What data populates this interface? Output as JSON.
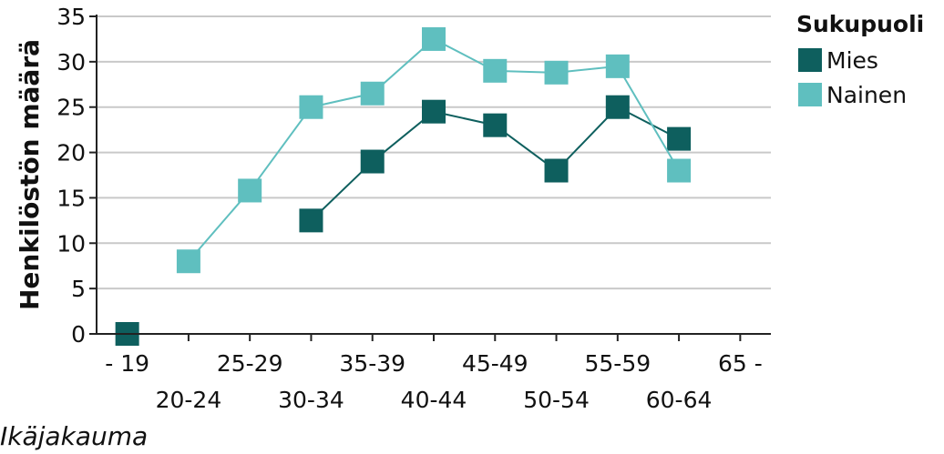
{
  "chart_data": {
    "type": "line",
    "categories": [
      "- 19",
      "20-24",
      "25-29",
      "30-34",
      "35-39",
      "40-44",
      "45-49",
      "50-54",
      "55-59",
      "60-64",
      "65 -"
    ],
    "series": [
      {
        "name": "Mies",
        "color": "#0e5f5e",
        "values": [
          0,
          null,
          null,
          12.5,
          19,
          24.5,
          23,
          18,
          25,
          21.5,
          null
        ]
      },
      {
        "name": "Nainen",
        "color": "#5fbfbf",
        "values": [
          null,
          8,
          15.8,
          25,
          26.5,
          32.5,
          29,
          28.8,
          29.5,
          18,
          null
        ]
      }
    ],
    "xlabel": "Ikäjakauma",
    "ylabel": "Henkilöstön määrä",
    "ylim": [
      0,
      35
    ],
    "yticks": [
      0,
      5,
      10,
      15,
      20,
      25,
      30,
      35
    ],
    "grid": true,
    "legend": {
      "title": "Sukupuoli",
      "position": "right"
    }
  }
}
